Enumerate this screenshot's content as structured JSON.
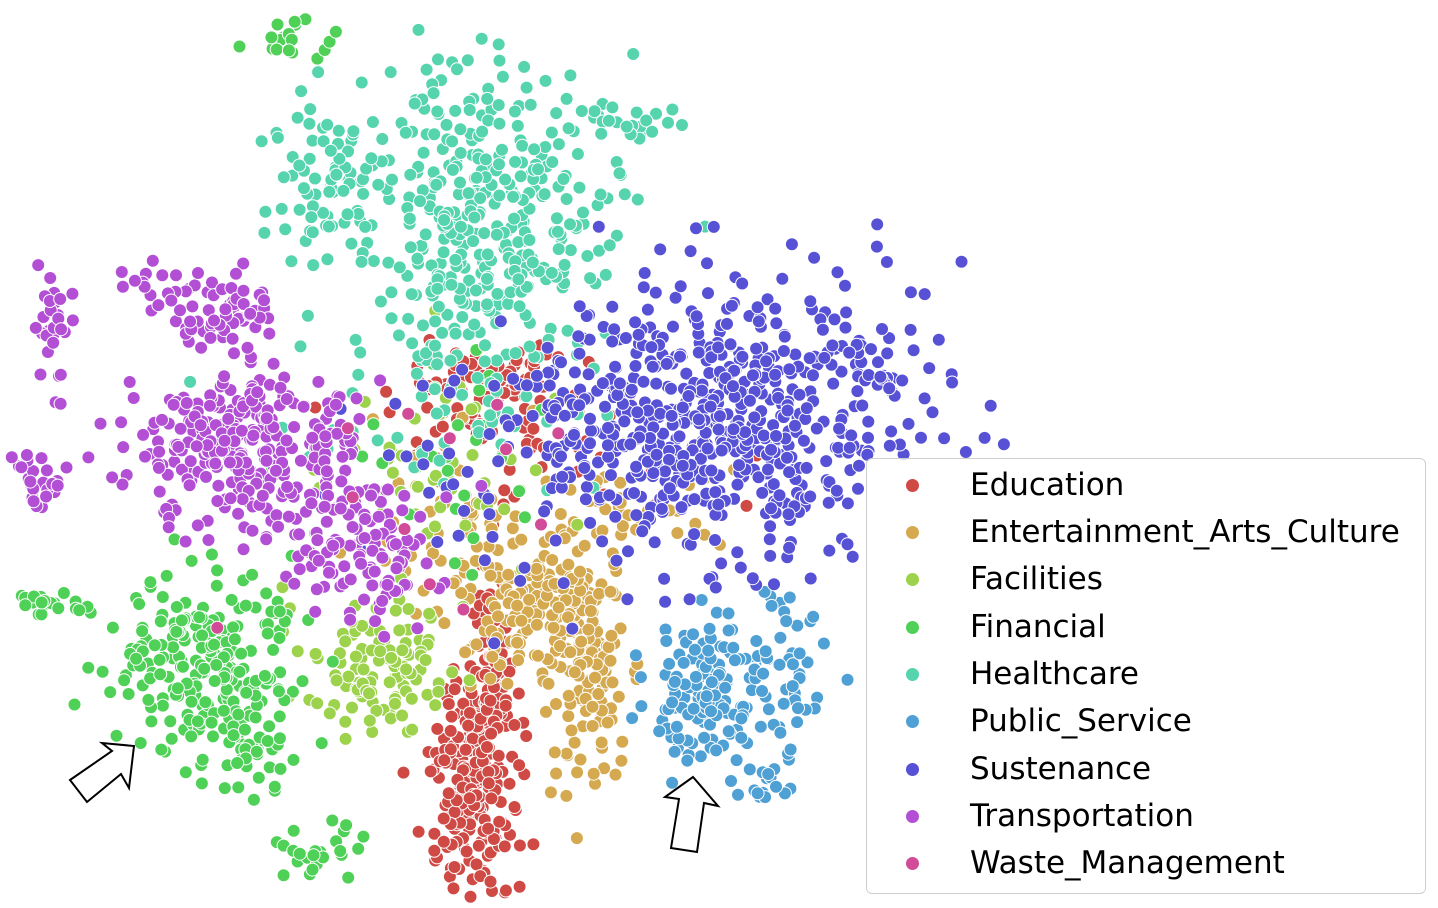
{
  "chart_data": {
    "type": "scatter",
    "title": "",
    "xlabel": "",
    "ylabel": "",
    "axes_visible": false,
    "grid": false,
    "legend_position": "right",
    "series": [
      {
        "name": "Education",
        "color": "#d04a45",
        "clusters": [
          {
            "cx": 475,
            "cy": 780,
            "sx": 22,
            "sy": 55,
            "n": 230
          },
          {
            "cx": 490,
            "cy": 660,
            "sx": 8,
            "sy": 40,
            "n": 60
          },
          {
            "cx": 485,
            "cy": 390,
            "sx": 40,
            "sy": 25,
            "n": 90
          },
          {
            "cx": 540,
            "cy": 460,
            "sx": 90,
            "sy": 40,
            "n": 40
          }
        ]
      },
      {
        "name": "Entertainment_Arts_Culture",
        "color": "#d4a94f",
        "clusters": [
          {
            "cx": 585,
            "cy": 660,
            "sx": 20,
            "sy": 60,
            "n": 140
          },
          {
            "cx": 530,
            "cy": 600,
            "sx": 40,
            "sy": 30,
            "n": 130
          },
          {
            "cx": 470,
            "cy": 540,
            "sx": 60,
            "sy": 50,
            "n": 60
          },
          {
            "cx": 640,
            "cy": 510,
            "sx": 50,
            "sy": 20,
            "n": 30
          }
        ]
      },
      {
        "name": "Facilities",
        "color": "#9dd34c",
        "clusters": [
          {
            "cx": 385,
            "cy": 670,
            "sx": 40,
            "sy": 35,
            "n": 110
          },
          {
            "cx": 430,
            "cy": 480,
            "sx": 70,
            "sy": 50,
            "n": 50
          }
        ]
      },
      {
        "name": "Financial",
        "color": "#4fd157",
        "clusters": [
          {
            "cx": 210,
            "cy": 665,
            "sx": 45,
            "sy": 45,
            "n": 240
          },
          {
            "cx": 255,
            "cy": 750,
            "sx": 15,
            "sy": 20,
            "n": 30
          },
          {
            "cx": 50,
            "cy": 602,
            "sx": 25,
            "sy": 6,
            "n": 25
          },
          {
            "cx": 290,
            "cy": 40,
            "sx": 20,
            "sy": 10,
            "n": 20
          },
          {
            "cx": 318,
            "cy": 850,
            "sx": 25,
            "sy": 18,
            "n": 25
          },
          {
            "cx": 450,
            "cy": 450,
            "sx": 70,
            "sy": 50,
            "n": 30
          }
        ]
      },
      {
        "name": "Healthcare",
        "color": "#55d4ad",
        "clusters": [
          {
            "cx": 490,
            "cy": 220,
            "sx": 60,
            "sy": 80,
            "n": 380
          },
          {
            "cx": 330,
            "cy": 175,
            "sx": 35,
            "sy": 35,
            "n": 80
          },
          {
            "cx": 620,
            "cy": 125,
            "sx": 30,
            "sy": 10,
            "n": 25
          },
          {
            "cx": 440,
            "cy": 420,
            "sx": 80,
            "sy": 40,
            "n": 40
          }
        ]
      },
      {
        "name": "Public_Service",
        "color": "#4fa0d4",
        "clusters": [
          {
            "cx": 700,
            "cy": 700,
            "sx": 25,
            "sy": 35,
            "n": 120
          },
          {
            "cx": 770,
            "cy": 680,
            "sx": 30,
            "sy": 50,
            "n": 60
          },
          {
            "cx": 760,
            "cy": 780,
            "sx": 15,
            "sy": 15,
            "n": 15
          }
        ]
      },
      {
        "name": "Sustenance",
        "color": "#5751d6",
        "clusters": [
          {
            "cx": 730,
            "cy": 420,
            "sx": 100,
            "sy": 70,
            "n": 620
          },
          {
            "cx": 600,
            "cy": 420,
            "sx": 40,
            "sy": 40,
            "n": 60
          },
          {
            "cx": 880,
            "cy": 378,
            "sx": 10,
            "sy": 5,
            "n": 10
          },
          {
            "cx": 500,
            "cy": 480,
            "sx": 80,
            "sy": 60,
            "n": 40
          }
        ]
      },
      {
        "name": "Transportation",
        "color": "#b24fd4",
        "clusters": [
          {
            "cx": 250,
            "cy": 450,
            "sx": 55,
            "sy": 40,
            "n": 300
          },
          {
            "cx": 230,
            "cy": 310,
            "sx": 25,
            "sy": 20,
            "n": 60
          },
          {
            "cx": 360,
            "cy": 540,
            "sx": 40,
            "sy": 40,
            "n": 120
          },
          {
            "cx": 50,
            "cy": 330,
            "sx": 8,
            "sy": 35,
            "n": 30
          },
          {
            "cx": 35,
            "cy": 475,
            "sx": 12,
            "sy": 18,
            "n": 25
          },
          {
            "cx": 150,
            "cy": 280,
            "sx": 15,
            "sy": 15,
            "n": 15
          }
        ]
      },
      {
        "name": "Waste_Management",
        "color": "#d14b98",
        "clusters": [
          {
            "cx": 450,
            "cy": 500,
            "sx": 90,
            "sy": 80,
            "n": 12
          }
        ]
      }
    ],
    "annotations": [
      {
        "type": "arrow",
        "direction": "up-right",
        "near": "Financial cluster"
      },
      {
        "type": "arrow",
        "direction": "up",
        "near": "Public_Service cluster"
      }
    ]
  }
}
